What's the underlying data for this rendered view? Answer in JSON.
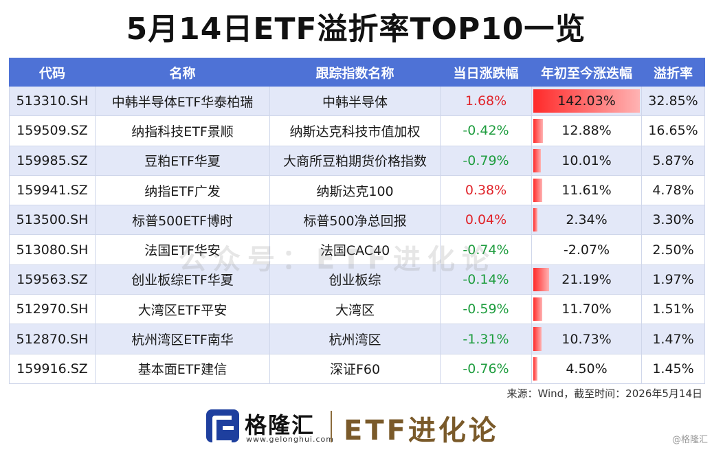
{
  "title": "5月14日ETF溢折率TOP10一览",
  "headers": [
    "代码",
    "名称",
    "跟踪指数名称",
    "当日涨跌幅",
    "年初至今涨迭幅",
    "溢折率"
  ],
  "rows": [
    {
      "code": "513310.SH",
      "name": "中韩半导体ETF华泰柏瑞",
      "index": "中韩半导体",
      "day": "1.68%",
      "day_dir": "up",
      "ytd": "142.03%",
      "ytd_value": 142.03,
      "premium": "32.85%"
    },
    {
      "code": "159509.SZ",
      "name": "纳指科技ETF景顺",
      "index": "纳斯达克科技市值加权",
      "day": "-0.42%",
      "day_dir": "down",
      "ytd": "12.88%",
      "ytd_value": 12.88,
      "premium": "16.65%"
    },
    {
      "code": "159985.SZ",
      "name": "豆粕ETF华夏",
      "index": "大商所豆粕期货价格指数",
      "day": "-0.79%",
      "day_dir": "down",
      "ytd": "10.01%",
      "ytd_value": 10.01,
      "premium": "5.87%"
    },
    {
      "code": "159941.SZ",
      "name": "纳指ETF广发",
      "index": "纳斯达克100",
      "day": "0.38%",
      "day_dir": "up",
      "ytd": "11.61%",
      "ytd_value": 11.61,
      "premium": "4.78%"
    },
    {
      "code": "513500.SH",
      "name": "标普500ETF博时",
      "index": "标普500净总回报",
      "day": "0.04%",
      "day_dir": "up",
      "ytd": "2.34%",
      "ytd_value": 2.34,
      "premium": "3.30%"
    },
    {
      "code": "513080.SH",
      "name": "法国ETF华安",
      "index": "法国CAC40",
      "day": "-0.74%",
      "day_dir": "down",
      "ytd": "-2.07%",
      "ytd_value": -2.07,
      "premium": "2.50%"
    },
    {
      "code": "159563.SZ",
      "name": "创业板综ETF华夏",
      "index": "创业板综",
      "day": "-0.14%",
      "day_dir": "down",
      "ytd": "21.19%",
      "ytd_value": 21.19,
      "premium": "1.97%"
    },
    {
      "code": "512970.SH",
      "name": "大湾区ETF平安",
      "index": "大湾区",
      "day": "-0.59%",
      "day_dir": "down",
      "ytd": "11.70%",
      "ytd_value": 11.7,
      "premium": "1.51%"
    },
    {
      "code": "512870.SH",
      "name": "杭州湾区ETF南华",
      "index": "杭州湾区",
      "day": "-1.31%",
      "day_dir": "down",
      "ytd": "10.73%",
      "ytd_value": 10.73,
      "premium": "1.47%"
    },
    {
      "code": "159916.SZ",
      "name": "基本面ETF建信",
      "index": "深证F60",
      "day": "-0.76%",
      "day_dir": "down",
      "ytd": "4.50%",
      "ytd_value": 4.5,
      "premium": "1.45%"
    }
  ],
  "ytd_max": 142.03,
  "watermark": "公众号：ETF进化论",
  "source": "来源：Wind，截至时间：2026年5月14日",
  "footer": {
    "brand": "格隆汇",
    "brand_url": "www.gelonghui.com",
    "etf_brand": "ETF进化论",
    "corner_mark": "@格隆汇"
  },
  "colors": {
    "header": "#4e72d6",
    "up": "#e0242a",
    "down": "#1f9d3f",
    "bar": "#ff2a2a"
  }
}
